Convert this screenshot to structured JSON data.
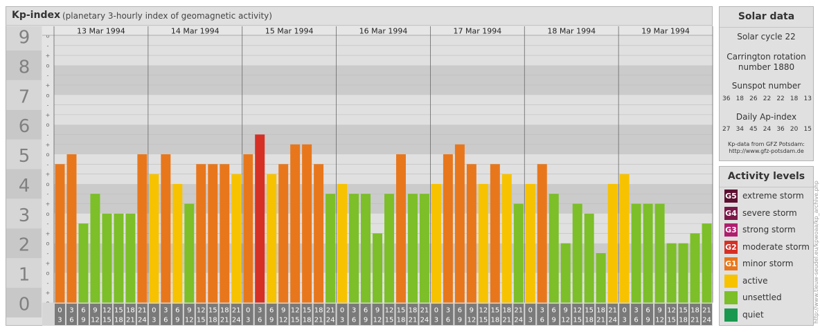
{
  "header": {
    "title": "Kp-index",
    "subtitle": "(planetary 3-hourly index of geomagnetic activity)"
  },
  "chart_data": {
    "type": "bar",
    "title": "Kp-index",
    "subtitle": "(planetary 3-hourly index of geomagnetic activity)",
    "days": [
      "13 Mar 1994",
      "14 Mar 1994",
      "15 Mar 1994",
      "16 Mar 1994",
      "17 Mar 1994",
      "18 Mar 1994",
      "19 Mar 1994"
    ],
    "interval_labels": [
      [
        "0",
        "3"
      ],
      [
        "3",
        "6"
      ],
      [
        "6",
        "9"
      ],
      [
        "9",
        "12"
      ],
      [
        "12",
        "15"
      ],
      [
        "15",
        "18"
      ],
      [
        "18",
        "21"
      ],
      [
        "21",
        "24"
      ]
    ],
    "y_ticks": [
      "0",
      "1",
      "2",
      "3",
      "4",
      "5",
      "6",
      "7",
      "8",
      "9"
    ],
    "minor_tick_labels": [
      "o",
      "+",
      "-"
    ],
    "ylim": [
      0,
      9
    ],
    "values": [
      [
        4.667,
        5.0,
        2.667,
        3.667,
        3.0,
        3.0,
        3.0,
        5.0
      ],
      [
        4.333,
        5.0,
        4.0,
        3.333,
        4.667,
        4.667,
        4.667,
        4.333
      ],
      [
        5.0,
        5.667,
        4.333,
        4.667,
        5.333,
        5.333,
        4.667,
        3.667
      ],
      [
        4.0,
        3.667,
        3.667,
        2.333,
        3.667,
        5.0,
        3.667,
        3.667
      ],
      [
        4.0,
        5.0,
        5.333,
        4.667,
        4.0,
        4.667,
        4.333,
        3.333
      ],
      [
        4.0,
        4.667,
        3.667,
        2.0,
        3.333,
        3.0,
        1.667,
        4.0
      ],
      [
        4.333,
        3.333,
        3.333,
        3.333,
        2.0,
        2.0,
        2.333,
        2.667
      ]
    ],
    "level_colors": {
      "quiet": "#1a9850",
      "unsettled": "#7cbf28",
      "active": "#f7c200",
      "minor_storm": "#e8771c",
      "moderate_storm": "#d63025"
    },
    "grid": true
  },
  "solar": {
    "header": "Solar data",
    "cycle": "Solar cycle 22",
    "carrington_line1": "Carrington rotation",
    "carrington_line2": "number 1880",
    "sunspot_title": "Sunspot number",
    "sunspot_values": [
      "36",
      "18",
      "26",
      "22",
      "22",
      "18",
      "13"
    ],
    "ap_title": "Daily Ap-index",
    "ap_values": [
      "27",
      "34",
      "45",
      "24",
      "36",
      "20",
      "15"
    ],
    "source_line1": "Kp-data from GFZ Potsdam:",
    "source_line2": "http://www.gfz-potsdam.de"
  },
  "activity": {
    "header": "Activity levels",
    "items": [
      {
        "code": "G5",
        "label": "extreme storm",
        "color": "#5c1030"
      },
      {
        "code": "G4",
        "label": "severe storm",
        "color": "#7a1848"
      },
      {
        "code": "G3",
        "label": "strong storm",
        "color": "#b01e6e"
      },
      {
        "code": "G2",
        "label": "moderate storm",
        "color": "#d63025"
      },
      {
        "code": "G1",
        "label": "minor storm",
        "color": "#e8771c"
      },
      {
        "code": "",
        "label": "active",
        "color": "#f7c200"
      },
      {
        "code": "",
        "label": "unsettled",
        "color": "#7cbf28"
      },
      {
        "code": "",
        "label": "quiet",
        "color": "#1a9850"
      }
    ]
  },
  "credit": "http://www.tieuw-seudel.eu/kpwoaa/kp_archive.php"
}
